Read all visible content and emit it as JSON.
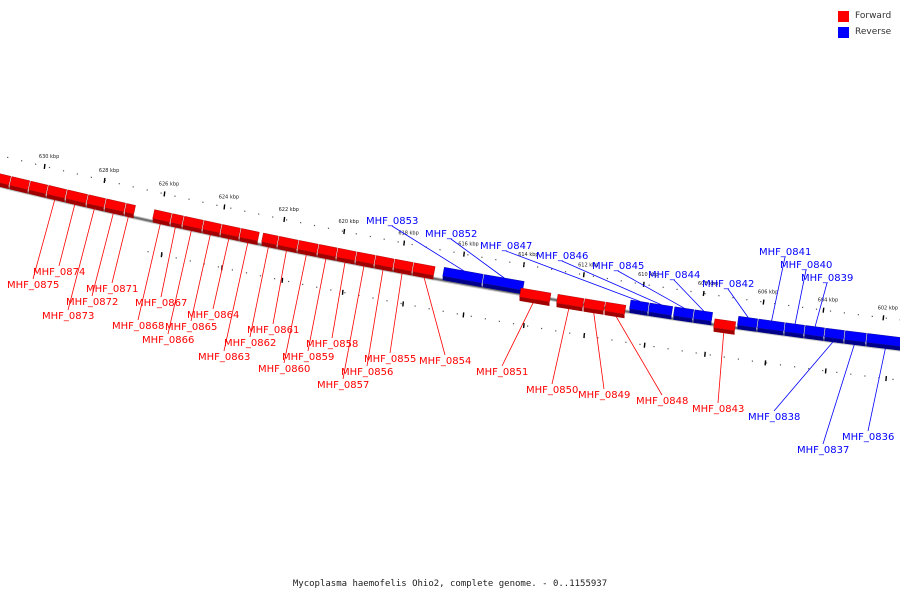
{
  "legend": {
    "forward_label": "Forward",
    "reverse_label": "Reverse",
    "forward_color": "#ff0000",
    "reverse_color": "#0000ff"
  },
  "caption": "Mycoplasma haemofelis Ohio2, complete genome. - 0..1155937",
  "ticks": [
    {
      "kbp": 630,
      "label": "630 kbp"
    },
    {
      "kbp": 628,
      "label": "628 kbp"
    },
    {
      "kbp": 626,
      "label": "626 kbp"
    },
    {
      "kbp": 624,
      "label": "624 kbp"
    },
    {
      "kbp": 622,
      "label": "622 kbp"
    },
    {
      "kbp": 620,
      "label": "620 kbp"
    },
    {
      "kbp": 618,
      "label": "618 kbp"
    },
    {
      "kbp": 616,
      "label": "616 kbp"
    },
    {
      "kbp": 614,
      "label": "614 kbp"
    },
    {
      "kbp": 612,
      "label": "612 kbp"
    },
    {
      "kbp": 610,
      "label": "610 kbp"
    },
    {
      "kbp": 608,
      "label": "608 kbp"
    },
    {
      "kbp": 606,
      "label": "606 kbp"
    },
    {
      "kbp": 604,
      "label": "604 kbp"
    },
    {
      "kbp": 602,
      "label": "602 kbp"
    }
  ],
  "genes": [
    {
      "id": "MHF_0875",
      "strand": "forward"
    },
    {
      "id": "MHF_0874",
      "strand": "forward"
    },
    {
      "id": "MHF_0873",
      "strand": "forward"
    },
    {
      "id": "MHF_0872",
      "strand": "forward"
    },
    {
      "id": "MHF_0871",
      "strand": "forward"
    },
    {
      "id": "MHF_0868",
      "strand": "forward"
    },
    {
      "id": "MHF_0867",
      "strand": "forward"
    },
    {
      "id": "MHF_0866",
      "strand": "forward"
    },
    {
      "id": "MHF_0865",
      "strand": "forward"
    },
    {
      "id": "MHF_0864",
      "strand": "forward"
    },
    {
      "id": "MHF_0863",
      "strand": "forward"
    },
    {
      "id": "MHF_0862",
      "strand": "forward"
    },
    {
      "id": "MHF_0861",
      "strand": "forward"
    },
    {
      "id": "MHF_0860",
      "strand": "forward"
    },
    {
      "id": "MHF_0859",
      "strand": "forward"
    },
    {
      "id": "MHF_0858",
      "strand": "forward"
    },
    {
      "id": "MHF_0857",
      "strand": "forward"
    },
    {
      "id": "MHF_0856",
      "strand": "forward"
    },
    {
      "id": "MHF_0855",
      "strand": "forward"
    },
    {
      "id": "MHF_0854",
      "strand": "forward"
    },
    {
      "id": "MHF_0853",
      "strand": "reverse"
    },
    {
      "id": "MHF_0852",
      "strand": "reverse"
    },
    {
      "id": "MHF_0851",
      "strand": "forward"
    },
    {
      "id": "MHF_0850",
      "strand": "forward"
    },
    {
      "id": "MHF_0849",
      "strand": "forward"
    },
    {
      "id": "MHF_0848",
      "strand": "forward"
    },
    {
      "id": "MHF_0847",
      "strand": "reverse"
    },
    {
      "id": "MHF_0846",
      "strand": "reverse"
    },
    {
      "id": "MHF_0845",
      "strand": "reverse"
    },
    {
      "id": "MHF_0844",
      "strand": "reverse"
    },
    {
      "id": "MHF_0843",
      "strand": "forward"
    },
    {
      "id": "MHF_0842",
      "strand": "reverse"
    },
    {
      "id": "MHF_0841",
      "strand": "reverse"
    },
    {
      "id": "MHF_0840",
      "strand": "reverse"
    },
    {
      "id": "MHF_0839",
      "strand": "reverse"
    },
    {
      "id": "MHF_0838",
      "strand": "reverse"
    },
    {
      "id": "MHF_0837",
      "strand": "reverse"
    },
    {
      "id": "MHF_0836",
      "strand": "reverse"
    }
  ]
}
